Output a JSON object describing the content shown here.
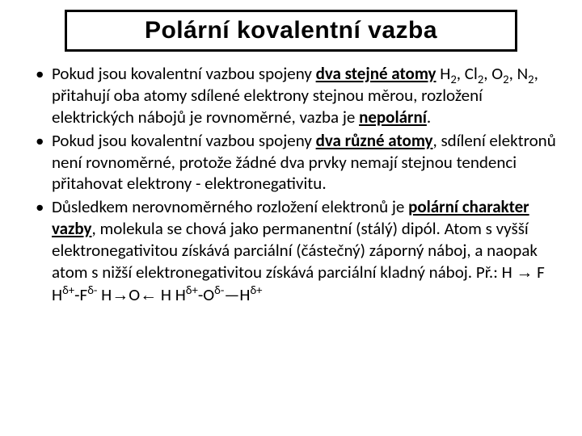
{
  "title": "Polární kovalentní vazba",
  "bullets": {
    "b1": {
      "t1": "Pokud jsou kovalentní vazbou spojeny ",
      "t2": "dva stejné atomy",
      "t3": "  H",
      "t4": ", Cl",
      "t5": ", O",
      "t6": ", N",
      "t7": ", přitahují oba atomy sdílené elektrony stejnou měrou, rozložení elektrických nábojů je rovnoměrné, vazba je ",
      "t8": "nepolární",
      "t9": "."
    },
    "b2": {
      "t1": "Pokud jsou kovalentní vazbou spojeny ",
      "t2": "dva různé atomy",
      "t3": ", sdílení elektronů není rovnoměrné, protože žádné dva prvky nemají stejnou tendenci přitahovat elektrony - elektronegativitu."
    },
    "b3": {
      "t1": "Důsledkem nerovnoměrného rozložení elektronů je ",
      "t2": "polární charakter vazby",
      "t3": ", molekula se chová jako permanentní (stálý) dipól. Atom s vyšší elektronegativitou získává parciální (částečný) záporný náboj, a naopak atom s nižší elektronegativitou získává parciální kladný náboj.    Př.: H ",
      "t4": " F    H",
      "t5": "-F",
      "t6": "    H",
      "t7": "O",
      "t8": " H   H",
      "t9": "-O",
      "t10": "H"
    }
  },
  "sym": {
    "sub2": "2",
    "deltaPlus": "δ+",
    "deltaMinus": "δ-",
    "arrowR": "→",
    "arrowL": "←",
    "longdash": "—"
  },
  "style": {
    "background": "#ffffff",
    "text_color": "#000000",
    "title_border": "#000000",
    "title_fontsize": 30,
    "body_fontsize": 21,
    "slide_width": 720,
    "slide_height": 540
  }
}
